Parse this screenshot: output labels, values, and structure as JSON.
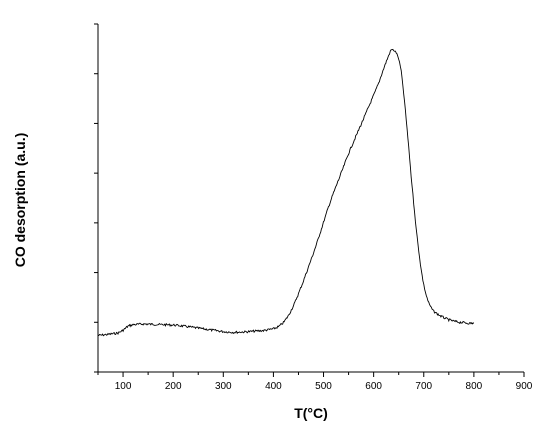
{
  "chart_data": {
    "type": "line",
    "title": "",
    "xlabel": "T(°C)",
    "ylabel": "CO desorption (a.u.)",
    "xlim": [
      50,
      900
    ],
    "x_ticks": [
      100,
      200,
      300,
      400,
      500,
      600,
      700,
      800,
      900
    ],
    "y_minor_ticks": 7,
    "y_ticks_labeled": false,
    "grid": false,
    "legend": "none",
    "line_color": "#000000",
    "series": [
      {
        "x": [
          50,
          70,
          90,
          100,
          110,
          120,
          140,
          160,
          180,
          200,
          220,
          240,
          260,
          280,
          300,
          320,
          340,
          360,
          380,
          400,
          410,
          420,
          430,
          440,
          450,
          460,
          470,
          480,
          490,
          500,
          510,
          520,
          530,
          540,
          550,
          560,
          570,
          580,
          590,
          600,
          610,
          620,
          630,
          635,
          640,
          645,
          650,
          655,
          660,
          665,
          670,
          675,
          680,
          685,
          690,
          695,
          700,
          705,
          710,
          715,
          720,
          730,
          740,
          750,
          760,
          770,
          780,
          790,
          800
        ],
        "values": [
          0.05,
          0.08,
          0.12,
          0.2,
          0.32,
          0.36,
          0.38,
          0.37,
          0.36,
          0.35,
          0.32,
          0.28,
          0.24,
          0.2,
          0.16,
          0.14,
          0.15,
          0.17,
          0.19,
          0.24,
          0.3,
          0.42,
          0.62,
          0.9,
          1.25,
          1.62,
          2.02,
          2.42,
          2.85,
          3.3,
          3.75,
          4.15,
          4.52,
          4.9,
          5.28,
          5.62,
          5.95,
          6.28,
          6.62,
          6.95,
          7.3,
          7.72,
          8.1,
          8.26,
          8.25,
          8.18,
          8.0,
          7.65,
          7.0,
          6.25,
          5.45,
          4.6,
          3.85,
          3.1,
          2.48,
          1.92,
          1.5,
          1.2,
          0.98,
          0.84,
          0.74,
          0.64,
          0.56,
          0.5,
          0.46,
          0.43,
          0.42,
          0.4,
          0.4
        ]
      }
    ],
    "ylim": [
      -1.0,
      9.0
    ]
  }
}
